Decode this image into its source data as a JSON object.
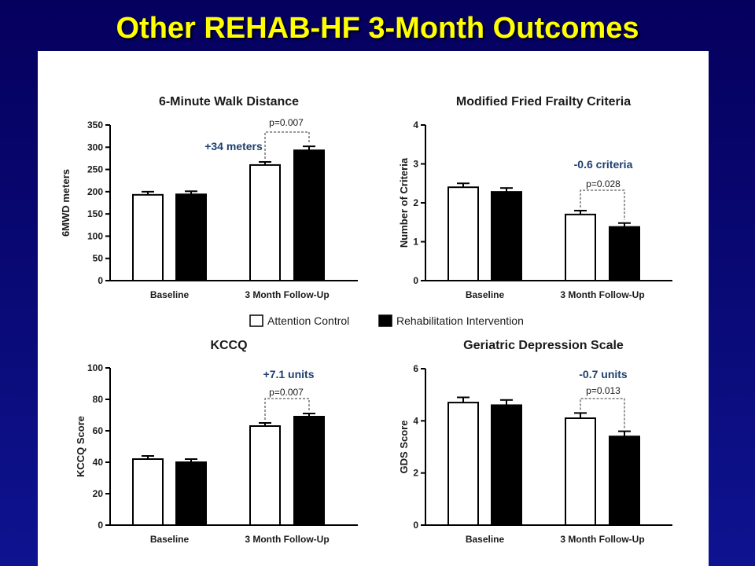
{
  "slide": {
    "title": "Other REHAB-HF 3-Month Outcomes"
  },
  "legend": {
    "items": [
      {
        "label": "Attention Control",
        "color": "#ffffff"
      },
      {
        "label": "Rehabilitation Intervention",
        "color": "#000000"
      }
    ]
  },
  "colors": {
    "control": "#ffffff",
    "intervention": "#000000",
    "annotation": "#1f3f6e",
    "title": "#ffff00"
  },
  "chart_data": [
    {
      "type": "bar",
      "title": "6-Minute Walk Distance",
      "ylabel": "6MWD meters",
      "xlabel": "",
      "categories": [
        "Baseline",
        "3 Month Follow-Up"
      ],
      "series": [
        {
          "name": "Attention Control",
          "values": [
            193,
            260
          ],
          "errors": [
            7,
            7
          ]
        },
        {
          "name": "Rehabilitation Intervention",
          "values": [
            194,
            293
          ],
          "errors": [
            7,
            9
          ]
        }
      ],
      "ylim": [
        0,
        350
      ],
      "yticks": [
        0,
        50,
        100,
        150,
        200,
        250,
        300,
        350
      ],
      "ytick_labels": [
        "0",
        "50",
        "100",
        "150",
        "200",
        "250",
        "300",
        "350"
      ],
      "annotation": "+34 meters",
      "pvalue": "p=0.007"
    },
    {
      "type": "bar",
      "title": "Modified Fried Frailty Criteria",
      "ylabel": "Number of Criteria",
      "xlabel": "",
      "categories": [
        "Baseline",
        "3 Month Follow-Up"
      ],
      "series": [
        {
          "name": "Attention Control",
          "values": [
            2.4,
            1.7
          ],
          "errors": [
            0.1,
            0.1
          ]
        },
        {
          "name": "Rehabilitation Intervention",
          "values": [
            2.28,
            1.38
          ],
          "errors": [
            0.1,
            0.1
          ]
        }
      ],
      "ylim": [
        0,
        4
      ],
      "yticks": [
        0,
        1,
        2,
        3,
        4
      ],
      "ytick_labels": [
        "0",
        "1",
        "2",
        "3",
        "4"
      ],
      "annotation": "-0.6 criteria",
      "pvalue": "p=0.028"
    },
    {
      "type": "bar",
      "title": "KCCQ",
      "ylabel": "KCCQ  Score",
      "xlabel": "",
      "categories": [
        "Baseline",
        "3 Month Follow-Up"
      ],
      "series": [
        {
          "name": "Attention Control",
          "values": [
            42,
            63
          ],
          "errors": [
            2,
            2
          ]
        },
        {
          "name": "Rehabilitation Intervention",
          "values": [
            40,
            69
          ],
          "errors": [
            2,
            2
          ]
        }
      ],
      "ylim": [
        0,
        100
      ],
      "yticks": [
        0,
        20,
        40,
        60,
        80,
        100
      ],
      "ytick_labels": [
        "0",
        "20",
        "40",
        "60",
        "80",
        "100"
      ],
      "annotation": "+7.1 units",
      "pvalue": "p=0.007"
    },
    {
      "type": "bar",
      "title": "Geriatric Depression Scale",
      "ylabel": "GDS Score",
      "xlabel": "",
      "categories": [
        "Baseline",
        "3 Month Follow-Up"
      ],
      "series": [
        {
          "name": "Attention Control",
          "values": [
            4.7,
            4.1
          ],
          "errors": [
            0.2,
            0.2
          ]
        },
        {
          "name": "Rehabilitation Intervention",
          "values": [
            4.6,
            3.4
          ],
          "errors": [
            0.2,
            0.2
          ]
        }
      ],
      "ylim": [
        0,
        6
      ],
      "yticks": [
        0,
        2,
        4,
        6
      ],
      "ytick_labels": [
        "0",
        "2",
        "4",
        "6"
      ],
      "annotation": "-0.7 units",
      "pvalue": "p=0.013"
    }
  ]
}
